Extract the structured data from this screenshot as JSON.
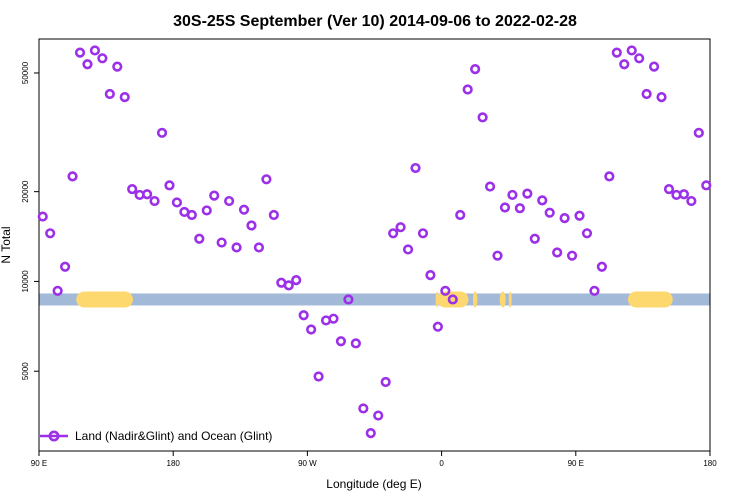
{
  "chart_data": {
    "type": "scatter",
    "title": "30S-25S September (Ver 10)   2014-09-06 to 2022-02-28",
    "xlabel": "Longitude (deg E)",
    "ylabel": "N Total",
    "y_scale": "log",
    "xlim": [
      90,
      540
    ],
    "ylim": [
      2700,
      65000
    ],
    "x_ticks": [
      {
        "value": 90,
        "label": "90 E"
      },
      {
        "value": 180,
        "label": "180"
      },
      {
        "value": 270,
        "label": "90 W"
      },
      {
        "value": 360,
        "label": "0"
      },
      {
        "value": 450,
        "label": "90 E"
      },
      {
        "value": 540,
        "label": "180"
      }
    ],
    "y_ticks": [
      {
        "value": 5000,
        "label": "5000"
      },
      {
        "value": 10000,
        "label": "10000"
      },
      {
        "value": 20000,
        "label": "20000"
      },
      {
        "value": 50000,
        "label": "50000"
      }
    ],
    "series": [
      {
        "name": "Land (Nadir&Glint) and Ocean (Glint)",
        "color": "#9b30e8",
        "marker": "open-circle",
        "points": [
          {
            "x": 92.5,
            "y": 16500
          },
          {
            "x": 97.5,
            "y": 14500
          },
          {
            "x": 102.5,
            "y": 9300
          },
          {
            "x": 107.5,
            "y": 11200
          },
          {
            "x": 112.5,
            "y": 22500
          },
          {
            "x": 117.5,
            "y": 58500
          },
          {
            "x": 122.5,
            "y": 53500
          },
          {
            "x": 127.5,
            "y": 59500
          },
          {
            "x": 132.5,
            "y": 56000
          },
          {
            "x": 137.5,
            "y": 42500
          },
          {
            "x": 142.5,
            "y": 52500
          },
          {
            "x": 147.5,
            "y": 41500
          },
          {
            "x": 152.5,
            "y": 20400
          },
          {
            "x": 157.5,
            "y": 19500
          },
          {
            "x": 162.5,
            "y": 19600
          },
          {
            "x": 167.5,
            "y": 18600
          },
          {
            "x": 172.5,
            "y": 31500
          },
          {
            "x": 177.5,
            "y": 21000
          },
          {
            "x": 182.5,
            "y": 18400
          },
          {
            "x": 187.5,
            "y": 17100
          },
          {
            "x": 192.5,
            "y": 16700
          },
          {
            "x": 197.5,
            "y": 13900
          },
          {
            "x": 202.5,
            "y": 17300
          },
          {
            "x": 207.5,
            "y": 19400
          },
          {
            "x": 212.5,
            "y": 13500
          },
          {
            "x": 217.5,
            "y": 18600
          },
          {
            "x": 222.5,
            "y": 13000
          },
          {
            "x": 227.5,
            "y": 17400
          },
          {
            "x": 232.5,
            "y": 15400
          },
          {
            "x": 237.5,
            "y": 13000
          },
          {
            "x": 242.5,
            "y": 22000
          },
          {
            "x": 247.5,
            "y": 16700
          },
          {
            "x": 252.5,
            "y": 9900
          },
          {
            "x": 257.5,
            "y": 9700
          },
          {
            "x": 262.5,
            "y": 10100
          },
          {
            "x": 267.5,
            "y": 7700
          },
          {
            "x": 272.5,
            "y": 6900
          },
          {
            "x": 277.5,
            "y": 4800
          },
          {
            "x": 282.5,
            "y": 7400
          },
          {
            "x": 287.5,
            "y": 7500
          },
          {
            "x": 292.5,
            "y": 6300
          },
          {
            "x": 297.5,
            "y": 8700
          },
          {
            "x": 302.5,
            "y": 6200
          },
          {
            "x": 307.5,
            "y": 3750
          },
          {
            "x": 312.5,
            "y": 3100
          },
          {
            "x": 317.5,
            "y": 3550
          },
          {
            "x": 322.5,
            "y": 4600
          },
          {
            "x": 327.5,
            "y": 14500
          },
          {
            "x": 332.5,
            "y": 15200
          },
          {
            "x": 337.5,
            "y": 12800
          },
          {
            "x": 342.5,
            "y": 24000
          },
          {
            "x": 347.5,
            "y": 14500
          },
          {
            "x": 352.5,
            "y": 10500
          },
          {
            "x": 357.5,
            "y": 7050
          },
          {
            "x": 362.5,
            "y": 9300
          },
          {
            "x": 367.5,
            "y": 8700
          },
          {
            "x": 372.5,
            "y": 16700
          },
          {
            "x": 377.5,
            "y": 44000
          },
          {
            "x": 382.5,
            "y": 51500
          },
          {
            "x": 387.5,
            "y": 35500
          },
          {
            "x": 392.5,
            "y": 20800
          },
          {
            "x": 397.5,
            "y": 12200
          },
          {
            "x": 402.5,
            "y": 17700
          },
          {
            "x": 407.5,
            "y": 19500
          },
          {
            "x": 412.5,
            "y": 17600
          },
          {
            "x": 417.5,
            "y": 19700
          },
          {
            "x": 422.5,
            "y": 13900
          },
          {
            "x": 427.5,
            "y": 18700
          },
          {
            "x": 432.5,
            "y": 17000
          },
          {
            "x": 437.5,
            "y": 12500
          },
          {
            "x": 442.5,
            "y": 16300
          },
          {
            "x": 447.5,
            "y": 12200
          },
          {
            "x": 452.5,
            "y": 16600
          },
          {
            "x": 457.5,
            "y": 14500
          },
          {
            "x": 462.5,
            "y": 9300
          },
          {
            "x": 467.5,
            "y": 11200
          },
          {
            "x": 472.5,
            "y": 22500
          },
          {
            "x": 477.5,
            "y": 58500
          },
          {
            "x": 482.5,
            "y": 53500
          },
          {
            "x": 487.5,
            "y": 59500
          },
          {
            "x": 492.5,
            "y": 56000
          },
          {
            "x": 497.5,
            "y": 42500
          },
          {
            "x": 502.5,
            "y": 52500
          },
          {
            "x": 507.5,
            "y": 41500
          },
          {
            "x": 512.5,
            "y": 20400
          },
          {
            "x": 517.5,
            "y": 19500
          },
          {
            "x": 522.5,
            "y": 19600
          },
          {
            "x": 527.5,
            "y": 18600
          },
          {
            "x": 532.5,
            "y": 31500
          },
          {
            "x": 537.5,
            "y": 21000
          }
        ]
      }
    ],
    "surface_strip": {
      "y": 8700,
      "ocean_color": "#a3b9d8",
      "land_color": "#fdd86f",
      "land_segments": [
        [
          115,
          153
        ],
        [
          357,
          378
        ],
        [
          485,
          515
        ],
        [
          356,
          358
        ],
        [
          381,
          384
        ],
        [
          399,
          403
        ],
        [
          405,
          407
        ]
      ]
    },
    "legend_position": "bottom-left",
    "grid": false
  }
}
